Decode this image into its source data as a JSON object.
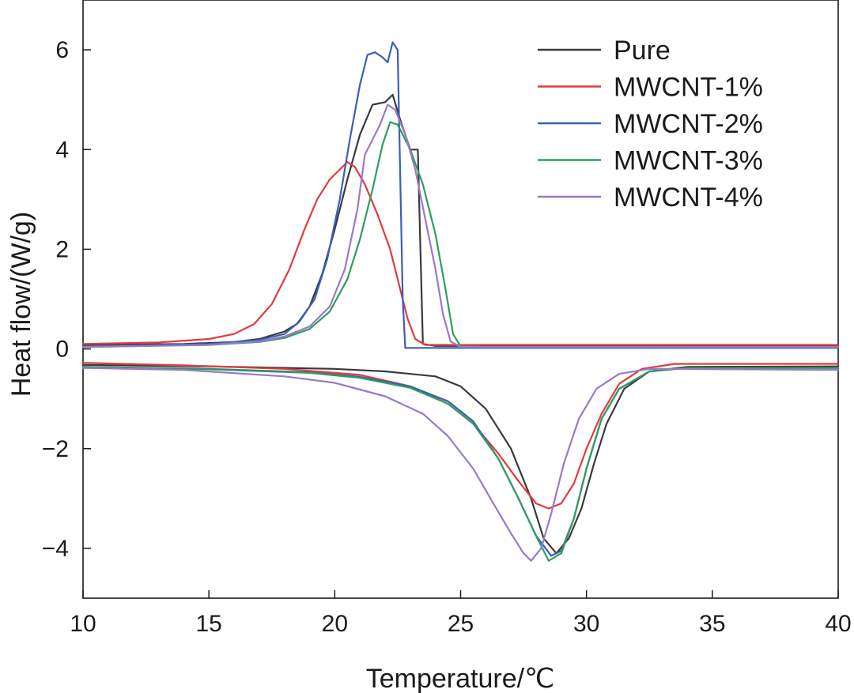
{
  "chart_data": {
    "type": "line",
    "title": "",
    "xlabel": "Temperature/℃",
    "ylabel": "Heat flow/(W/g)",
    "xlim": [
      10,
      40
    ],
    "ylim": [
      -5,
      7
    ],
    "xticks": [
      10,
      15,
      20,
      25,
      30,
      35,
      40
    ],
    "yticks": [
      -4,
      -2,
      0,
      2,
      4,
      6
    ],
    "ytick_labels": [
      "−4",
      "−2",
      "0",
      "2",
      "4",
      "6"
    ],
    "grid": false,
    "legend_position": "top-right",
    "series": [
      {
        "name": "Pure",
        "color": "#3a3a3a",
        "segments": [
          [
            [
              10,
              0.08
            ],
            [
              14,
              0.1
            ],
            [
              16,
              0.14
            ],
            [
              17,
              0.2
            ],
            [
              18,
              0.35
            ],
            [
              18.5,
              0.5
            ],
            [
              19,
              0.85
            ],
            [
              19.5,
              1.5
            ],
            [
              20,
              2.4
            ],
            [
              20.5,
              3.4
            ],
            [
              21,
              4.3
            ],
            [
              21.5,
              4.9
            ],
            [
              22,
              4.95
            ],
            [
              22.3,
              5.1
            ],
            [
              22.6,
              4.6
            ],
            [
              23,
              4.0
            ],
            [
              23.3,
              4.0
            ],
            [
              23.5,
              0.1
            ],
            [
              24,
              0.06
            ],
            [
              30,
              0.06
            ],
            [
              40,
              0.06
            ]
          ],
          [
            [
              10,
              -0.32
            ],
            [
              15,
              -0.35
            ],
            [
              20,
              -0.4
            ],
            [
              22,
              -0.45
            ],
            [
              24,
              -0.55
            ],
            [
              25,
              -0.75
            ],
            [
              26,
              -1.2
            ],
            [
              27,
              -2.0
            ],
            [
              27.8,
              -3.0
            ],
            [
              28.3,
              -3.8
            ],
            [
              28.8,
              -4.1
            ],
            [
              29.3,
              -3.8
            ],
            [
              29.8,
              -3.2
            ],
            [
              30.3,
              -2.3
            ],
            [
              30.8,
              -1.5
            ],
            [
              31.5,
              -0.8
            ],
            [
              32.5,
              -0.45
            ],
            [
              34,
              -0.36
            ],
            [
              40,
              -0.35
            ]
          ]
        ]
      },
      {
        "name": "MWCNT-1%",
        "color": "#e23b3b",
        "segments": [
          [
            [
              10,
              0.1
            ],
            [
              13,
              0.13
            ],
            [
              15,
              0.2
            ],
            [
              16,
              0.3
            ],
            [
              16.8,
              0.5
            ],
            [
              17.5,
              0.9
            ],
            [
              18.2,
              1.6
            ],
            [
              18.8,
              2.4
            ],
            [
              19.3,
              3.0
            ],
            [
              19.8,
              3.4
            ],
            [
              20.2,
              3.6
            ],
            [
              20.5,
              3.75
            ],
            [
              20.8,
              3.65
            ],
            [
              21.2,
              3.3
            ],
            [
              21.7,
              2.7
            ],
            [
              22.2,
              2.0
            ],
            [
              22.6,
              1.2
            ],
            [
              22.9,
              0.6
            ],
            [
              23.2,
              0.2
            ],
            [
              23.6,
              0.08
            ],
            [
              30,
              0.08
            ],
            [
              40,
              0.08
            ]
          ],
          [
            [
              10,
              -0.28
            ],
            [
              14,
              -0.33
            ],
            [
              18,
              -0.4
            ],
            [
              21,
              -0.52
            ],
            [
              23,
              -0.75
            ],
            [
              24.5,
              -1.1
            ],
            [
              25.5,
              -1.5
            ],
            [
              26.5,
              -2.1
            ],
            [
              27.3,
              -2.65
            ],
            [
              28,
              -3.1
            ],
            [
              28.5,
              -3.2
            ],
            [
              29,
              -3.1
            ],
            [
              29.5,
              -2.7
            ],
            [
              30,
              -2.0
            ],
            [
              30.6,
              -1.3
            ],
            [
              31.3,
              -0.7
            ],
            [
              32.2,
              -0.4
            ],
            [
              33.5,
              -0.3
            ],
            [
              40,
              -0.3
            ]
          ]
        ]
      },
      {
        "name": "MWCNT-2%",
        "color": "#3a5fb8",
        "segments": [
          [
            [
              10,
              0.05
            ],
            [
              15,
              0.1
            ],
            [
              17,
              0.18
            ],
            [
              18,
              0.3
            ],
            [
              18.6,
              0.55
            ],
            [
              19.2,
              1.0
            ],
            [
              19.7,
              1.8
            ],
            [
              20.2,
              3.0
            ],
            [
              20.6,
              4.2
            ],
            [
              21,
              5.3
            ],
            [
              21.3,
              5.9
            ],
            [
              21.6,
              5.95
            ],
            [
              21.9,
              5.85
            ],
            [
              22.1,
              5.75
            ],
            [
              22.3,
              6.15
            ],
            [
              22.5,
              6.0
            ],
            [
              22.7,
              1.0
            ],
            [
              22.8,
              0.02
            ],
            [
              23.5,
              0.02
            ],
            [
              30,
              0.02
            ],
            [
              40,
              0.02
            ]
          ],
          [
            [
              10,
              -0.36
            ],
            [
              15,
              -0.4
            ],
            [
              19,
              -0.47
            ],
            [
              21,
              -0.56
            ],
            [
              23,
              -0.75
            ],
            [
              24.5,
              -1.05
            ],
            [
              25.5,
              -1.45
            ],
            [
              26.5,
              -2.2
            ],
            [
              27.3,
              -3.0
            ],
            [
              28,
              -3.75
            ],
            [
              28.6,
              -4.15
            ],
            [
              29,
              -4.05
            ],
            [
              29.5,
              -3.4
            ],
            [
              30,
              -2.4
            ],
            [
              30.6,
              -1.4
            ],
            [
              31.3,
              -0.8
            ],
            [
              32.5,
              -0.45
            ],
            [
              34,
              -0.38
            ],
            [
              40,
              -0.38
            ]
          ]
        ]
      },
      {
        "name": "MWCNT-3%",
        "color": "#2e9e5e",
        "segments": [
          [
            [
              10,
              0.04
            ],
            [
              15,
              0.08
            ],
            [
              17,
              0.14
            ],
            [
              18,
              0.22
            ],
            [
              19,
              0.4
            ],
            [
              19.8,
              0.75
            ],
            [
              20.5,
              1.4
            ],
            [
              21,
              2.2
            ],
            [
              21.5,
              3.2
            ],
            [
              21.9,
              4.1
            ],
            [
              22.2,
              4.55
            ],
            [
              22.5,
              4.5
            ],
            [
              23,
              4.0
            ],
            [
              23.5,
              3.3
            ],
            [
              24,
              2.3
            ],
            [
              24.4,
              1.2
            ],
            [
              24.7,
              0.3
            ],
            [
              25,
              0.05
            ],
            [
              26,
              0.04
            ],
            [
              40,
              0.04
            ]
          ],
          [
            [
              10,
              -0.36
            ],
            [
              15,
              -0.41
            ],
            [
              19,
              -0.48
            ],
            [
              21,
              -0.58
            ],
            [
              23,
              -0.78
            ],
            [
              24.5,
              -1.1
            ],
            [
              25.5,
              -1.5
            ],
            [
              26.5,
              -2.2
            ],
            [
              27.3,
              -3.0
            ],
            [
              28,
              -3.75
            ],
            [
              28.5,
              -4.25
            ],
            [
              29,
              -4.1
            ],
            [
              29.5,
              -3.4
            ],
            [
              30,
              -2.4
            ],
            [
              30.6,
              -1.4
            ],
            [
              31.3,
              -0.8
            ],
            [
              32.5,
              -0.45
            ],
            [
              34,
              -0.38
            ],
            [
              40,
              -0.38
            ]
          ]
        ]
      },
      {
        "name": "MWCNT-4%",
        "color": "#9a79c9",
        "segments": [
          [
            [
              10,
              0.04
            ],
            [
              15,
              0.08
            ],
            [
              17,
              0.15
            ],
            [
              18,
              0.25
            ],
            [
              19,
              0.45
            ],
            [
              19.8,
              0.85
            ],
            [
              20.4,
              1.6
            ],
            [
              20.9,
              2.8
            ],
            [
              21.2,
              3.9
            ],
            [
              21.5,
              4.2
            ],
            [
              21.8,
              4.5
            ],
            [
              22.1,
              4.9
            ],
            [
              22.4,
              4.8
            ],
            [
              22.8,
              4.3
            ],
            [
              23.2,
              3.6
            ],
            [
              23.6,
              2.6
            ],
            [
              24,
              1.6
            ],
            [
              24.3,
              0.7
            ],
            [
              24.6,
              0.15
            ],
            [
              25,
              0.04
            ],
            [
              40,
              0.04
            ]
          ],
          [
            [
              10,
              -0.38
            ],
            [
              14,
              -0.42
            ],
            [
              18,
              -0.55
            ],
            [
              20,
              -0.68
            ],
            [
              22,
              -0.95
            ],
            [
              23.5,
              -1.3
            ],
            [
              24.5,
              -1.75
            ],
            [
              25.5,
              -2.4
            ],
            [
              26.3,
              -3.1
            ],
            [
              27,
              -3.7
            ],
            [
              27.5,
              -4.1
            ],
            [
              27.8,
              -4.25
            ],
            [
              28.2,
              -4.0
            ],
            [
              28.6,
              -3.3
            ],
            [
              29.1,
              -2.3
            ],
            [
              29.7,
              -1.4
            ],
            [
              30.4,
              -0.8
            ],
            [
              31.3,
              -0.5
            ],
            [
              32.5,
              -0.4
            ],
            [
              40,
              -0.42
            ]
          ]
        ]
      }
    ]
  }
}
